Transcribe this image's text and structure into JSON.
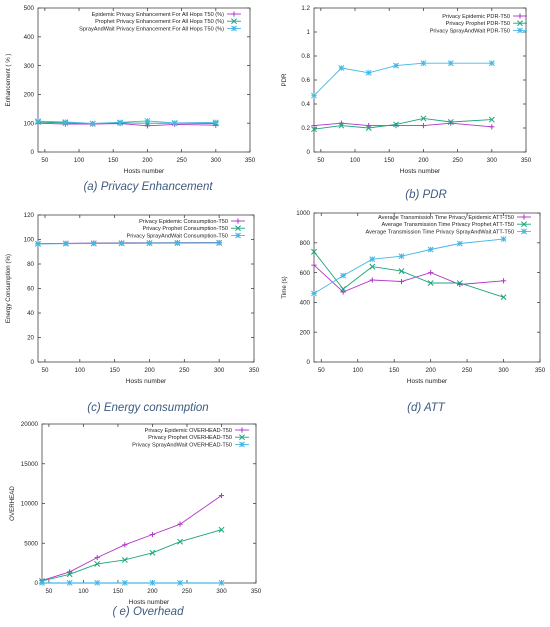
{
  "colors": {
    "epidemic": "#b035c8",
    "prophet": "#1aa57a",
    "spray": "#45b7e6",
    "caption": "#3d5a80"
  },
  "chart_data": [
    {
      "id": "a",
      "type": "line",
      "caption": "(a) Privacy Enhancement",
      "xlabel": "Hosts number",
      "ylabel": "Enhancement ( % )",
      "xlim": [
        40,
        350
      ],
      "ylim": [
        0,
        500
      ],
      "xticks": [
        50,
        100,
        150,
        200,
        250,
        300,
        350
      ],
      "yticks": [
        0,
        100,
        200,
        300,
        400,
        500
      ],
      "legend_position": "top-right",
      "series": [
        {
          "name": "Epidemic Privacy Enhancement For All Hops T50 (%)",
          "color": "#b035c8",
          "marker": "plus",
          "x": [
            40,
            80,
            120,
            160,
            200,
            240,
            300
          ],
          "y": [
            100,
            97,
            97,
            99,
            91,
            96,
            93
          ]
        },
        {
          "name": "Prophet Privacy Enhancement For All Hops T50 (%)",
          "color": "#1aa57a",
          "marker": "x",
          "x": [
            40,
            80,
            120,
            160,
            200,
            240,
            300
          ],
          "y": [
            104,
            101,
            98,
            101,
            100,
            100,
            99
          ]
        },
        {
          "name": "SprayAndWait Privacy Enhancement For All Hops T50 (%)",
          "color": "#45b7e6",
          "marker": "star",
          "x": [
            40,
            80,
            120,
            160,
            200,
            240,
            300
          ],
          "y": [
            107,
            104,
            99,
            103,
            108,
            101,
            103
          ]
        }
      ]
    },
    {
      "id": "b",
      "type": "line",
      "caption": "(b) PDR",
      "xlabel": "Hosts number",
      "ylabel": "PDR",
      "xlim": [
        40,
        350
      ],
      "ylim": [
        0,
        1.2
      ],
      "xticks": [
        50,
        100,
        150,
        200,
        250,
        300,
        350
      ],
      "yticks": [
        0,
        0.2,
        0.4,
        0.6,
        0.8,
        1,
        1.2
      ],
      "legend_position": "top-right",
      "series": [
        {
          "name": "Privacy Epidemic PDR-T50",
          "color": "#b035c8",
          "marker": "plus",
          "x": [
            40,
            80,
            120,
            160,
            200,
            240,
            300
          ],
          "y": [
            0.22,
            0.24,
            0.22,
            0.22,
            0.22,
            0.24,
            0.21
          ]
        },
        {
          "name": "Privacy Prophet PDR-T50",
          "color": "#1aa57a",
          "marker": "x",
          "x": [
            40,
            80,
            120,
            160,
            200,
            240,
            300
          ],
          "y": [
            0.19,
            0.22,
            0.2,
            0.23,
            0.28,
            0.25,
            0.27
          ]
        },
        {
          "name": "Privacy SprayAndWait PDR-T50",
          "color": "#45b7e6",
          "marker": "star",
          "x": [
            40,
            80,
            120,
            160,
            200,
            240,
            300
          ],
          "y": [
            0.47,
            0.7,
            0.66,
            0.72,
            0.74,
            0.74,
            0.74
          ]
        }
      ]
    },
    {
      "id": "c",
      "type": "line",
      "caption": "(c) Energy consumption",
      "xlabel": "Hosts number",
      "ylabel": "Energy Consumption (%)",
      "xlim": [
        40,
        350
      ],
      "ylim": [
        0,
        120
      ],
      "xticks": [
        50,
        100,
        150,
        200,
        250,
        300,
        350
      ],
      "yticks": [
        0,
        20,
        40,
        60,
        80,
        100,
        120
      ],
      "legend_position": "top-right",
      "series": [
        {
          "name": "Privacy Epidemic Consumption-T50",
          "color": "#b035c8",
          "marker": "plus",
          "x": [
            40,
            80,
            120,
            160,
            200,
            240,
            300
          ],
          "y": [
            96.6,
            96.9,
            97.1,
            97.2,
            97.3,
            97.4,
            97.5
          ]
        },
        {
          "name": "Privacy Prophet Consumption-T50",
          "color": "#1aa57a",
          "marker": "x",
          "x": [
            40,
            80,
            120,
            160,
            200,
            240,
            300
          ],
          "y": [
            96.5,
            96.8,
            96.9,
            97.0,
            97.1,
            97.2,
            97.3
          ]
        },
        {
          "name": "Privacy SprayAndWait Consumption-T50",
          "color": "#45b7e6",
          "marker": "star",
          "x": [
            40,
            80,
            120,
            160,
            200,
            240,
            300
          ],
          "y": [
            96.4,
            96.6,
            96.7,
            96.8,
            96.9,
            97.0,
            97.1
          ]
        }
      ]
    },
    {
      "id": "d",
      "type": "line",
      "caption": "(d) ATT",
      "xlabel": "Hosts number",
      "ylabel": "Time (s)",
      "xlim": [
        40,
        350
      ],
      "ylim": [
        0,
        1000
      ],
      "xticks": [
        50,
        100,
        150,
        200,
        250,
        300,
        350
      ],
      "yticks": [
        0,
        200,
        400,
        600,
        800,
        1000
      ],
      "legend_position": "top-right",
      "series": [
        {
          "name": "Average Transmission Time Privacy Epidemic ATT-T50",
          "color": "#b035c8",
          "marker": "plus",
          "x": [
            40,
            80,
            120,
            160,
            200,
            240,
            300
          ],
          "y": [
            650,
            470,
            550,
            540,
            600,
            520,
            545
          ]
        },
        {
          "name": "Average Transmission Time Privacy Prophet ATT-T50",
          "color": "#1aa57a",
          "marker": "x",
          "x": [
            40,
            80,
            120,
            160,
            200,
            240,
            300
          ],
          "y": [
            740,
            490,
            640,
            610,
            530,
            530,
            435
          ]
        },
        {
          "name": "Average Transmission Time Privacy SprayAndWait ATT-T50",
          "color": "#45b7e6",
          "marker": "star",
          "x": [
            40,
            80,
            120,
            160,
            200,
            240,
            300
          ],
          "y": [
            460,
            580,
            690,
            710,
            755,
            795,
            825
          ]
        }
      ]
    },
    {
      "id": "e",
      "type": "line",
      "caption": "( e) Overhead",
      "xlabel": "Hosts number",
      "ylabel": "OVERHEAD",
      "xlim": [
        40,
        350
      ],
      "ylim": [
        0,
        20000
      ],
      "xticks": [
        50,
        100,
        150,
        200,
        250,
        300,
        350
      ],
      "yticks": [
        0,
        5000,
        10000,
        15000,
        20000
      ],
      "legend_position": "top-right",
      "series": [
        {
          "name": "Privacy Epidemic OVERHEAD-T50",
          "color": "#b035c8",
          "marker": "plus",
          "x": [
            40,
            80,
            120,
            160,
            200,
            240,
            300
          ],
          "y": [
            300,
            1400,
            3200,
            4800,
            6100,
            7400,
            11000
          ]
        },
        {
          "name": "Privacy Prophet OVERHEAD-T50",
          "color": "#1aa57a",
          "marker": "x",
          "x": [
            40,
            80,
            120,
            160,
            200,
            240,
            300
          ],
          "y": [
            250,
            1100,
            2400,
            2900,
            3800,
            5200,
            6700
          ]
        },
        {
          "name": "Privacy SprayAndWait OVERHEAD-T50",
          "color": "#45b7e6",
          "marker": "star",
          "x": [
            40,
            80,
            120,
            160,
            200,
            240,
            300
          ],
          "y": [
            20,
            20,
            20,
            20,
            20,
            20,
            20
          ]
        }
      ]
    }
  ]
}
